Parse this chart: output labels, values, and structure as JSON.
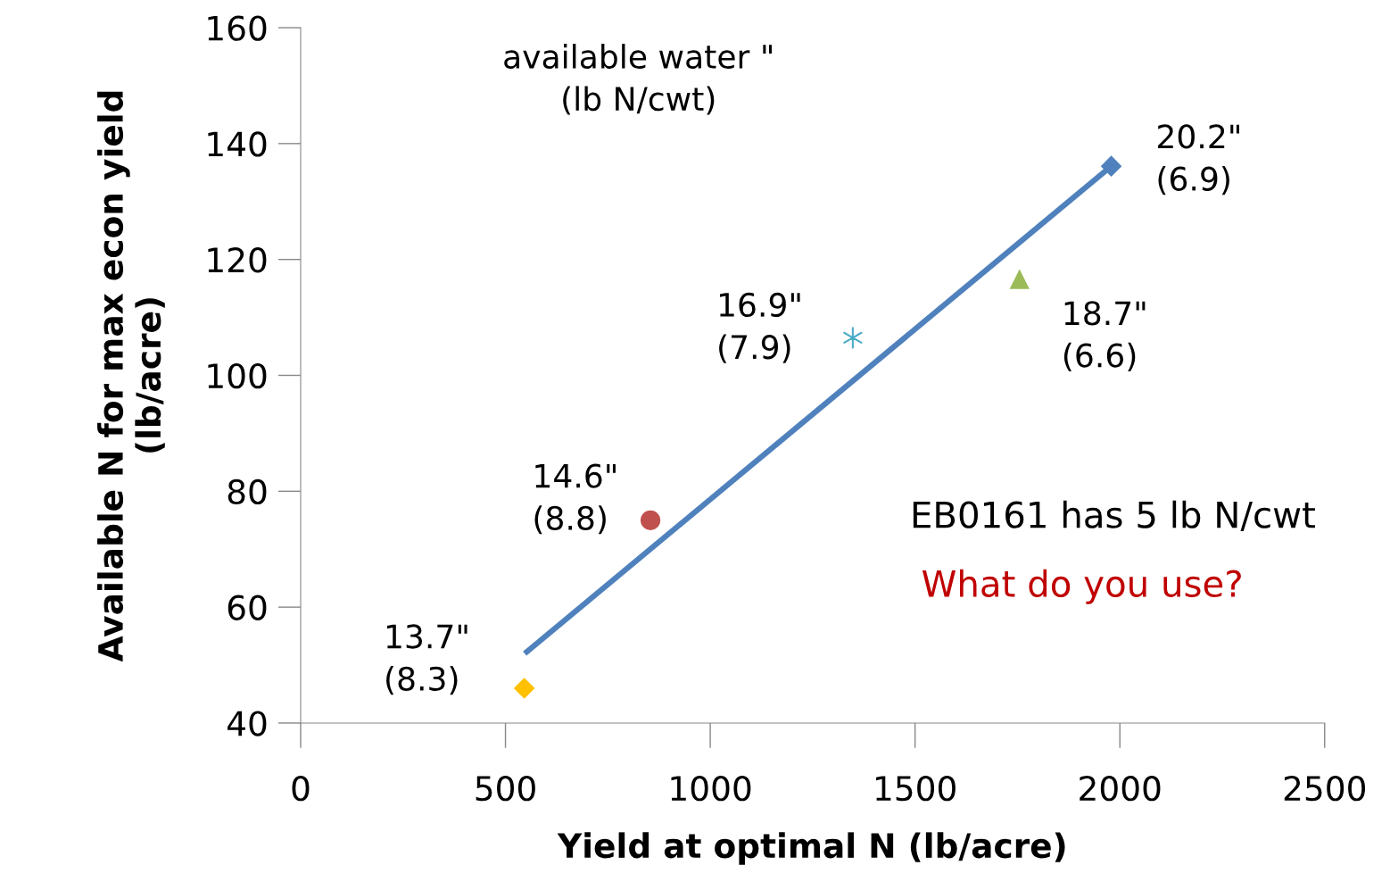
{
  "chart_data": {
    "type": "scatter",
    "xlabel": "Yield at optimal N (lb/acre)",
    "ylabel": "Available N for max econ yield\n(lb/acre)",
    "xlim": [
      0,
      2500
    ],
    "xticks": [
      0,
      500,
      1000,
      1500,
      2000,
      2500
    ],
    "ylim": [
      40,
      160
    ],
    "yticks": [
      40,
      60,
      80,
      100,
      120,
      140,
      160
    ],
    "grid": false,
    "legend": false,
    "series": [
      {
        "marker": "diamond",
        "color": "#ffc000",
        "x": [
          546
        ],
        "values": [
          46
        ]
      },
      {
        "marker": "circle",
        "color": "#c0504d",
        "x": [
          854
        ],
        "values": [
          75
        ]
      },
      {
        "marker": "cross",
        "color": "#4bacc6",
        "x": [
          1348
        ],
        "values": [
          106.5
        ]
      },
      {
        "marker": "triangle",
        "color": "#9bbb59",
        "x": [
          1755
        ],
        "values": [
          116.6
        ]
      },
      {
        "marker": "diamond",
        "color": "#4f81bd",
        "x": [
          1979
        ],
        "values": [
          136.1
        ]
      },
      {
        "type": "line",
        "marker": "none",
        "line_style": "solid",
        "color": "#4f81bd",
        "x": [
          547,
          1979
        ],
        "values": [
          52,
          136.1
        ]
      }
    ],
    "annotations": [
      "13.7\"\n(8.3)",
      "14.6\"\n(8.8)",
      "16.9\"\n(7.9)",
      "18.7\"\n(6.6)",
      "20.2\"\n(6.9)",
      "available water \"\n(lb N/cwt)",
      "EB0161 has 5 lb N/cwt",
      "What do you use?"
    ]
  }
}
